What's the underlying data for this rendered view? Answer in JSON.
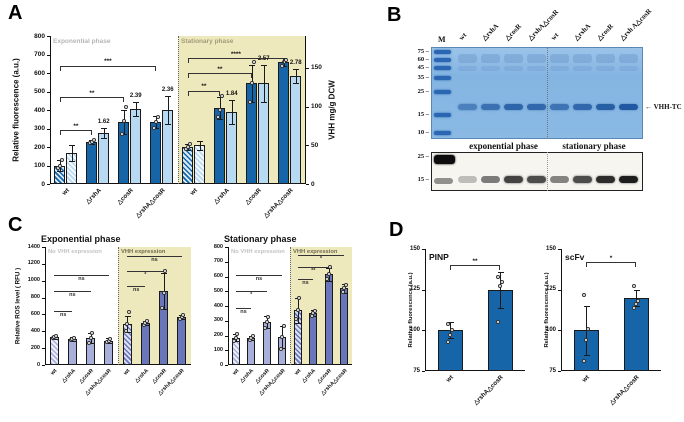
{
  "panels": {
    "A": "A",
    "B": "B",
    "C": "C",
    "D": "D"
  },
  "colors": {
    "dark_blue": "#1565a8",
    "dark_blue_hatch_bg": "#d8e9f6",
    "light_blue": "#b7d9f1",
    "light_blue_hatch_bg": "#f2f8fd",
    "purple_dark": "#6a76ba",
    "purple_dark_hatch_bg": "#dde0f2",
    "purple_light": "#a8afda",
    "purple_light_hatch_bg": "#eef0f9",
    "region_yellow": "#eee9bd",
    "gel_blue": "#8ab9e4",
    "gel_band_blue": "#2b66b2",
    "blot_bg": "#f7f5f0"
  },
  "chart_data": [
    {
      "id": "A",
      "type": "bar",
      "axis_left": {
        "label": "Relative fluorescence (a.u.)",
        "lim": [
          0,
          800
        ],
        "ticks": [
          0,
          100,
          200,
          300,
          400,
          500,
          600,
          700,
          800
        ]
      },
      "axis_right": {
        "label": "VHH mg/g DCW",
        "lim": [
          0,
          150
        ],
        "ticks": [
          0,
          50,
          100,
          150
        ],
        "top_fraction": 0.785
      },
      "categories": [
        "wt",
        "△rshA",
        "△cosR",
        "△rshA△cosR",
        "wt",
        "△rshA",
        "△cosR",
        "△rshA△cosR"
      ],
      "regions": [
        {
          "label": "Exponential phase",
          "from": 0,
          "to": 3,
          "bg": "#ffffff",
          "label_color": "#b5b5b5"
        },
        {
          "label": "Stationary phase",
          "from": 4,
          "to": 7,
          "bg": "#eee9bd",
          "label_color": "#a39b79"
        }
      ],
      "separators": [
        4
      ],
      "series": [
        {
          "name": "Relative fluorescence (a.u.)",
          "axis": "left",
          "styles": [
            "darkblue:hatch",
            "darkblue",
            "darkblue",
            "darkblue",
            "darkblue:hatch",
            "darkblue",
            "darkblue",
            "darkblue"
          ],
          "values": [
            100,
            228,
            335,
            335,
            200,
            410,
            545,
            660
          ],
          "errors": [
            30,
            12,
            65,
            30,
            18,
            60,
            100,
            20
          ],
          "points": [
            [
              85,
              100,
              128
            ],
            [
              222,
              228,
              236
            ],
            [
              270,
              340,
              415
            ],
            [
              305,
              335,
              362
            ],
            [
              190,
              200,
              215
            ],
            [
              360,
              400,
              475
            ],
            [
              445,
              545,
              660
            ],
            [
              640,
              660,
              672
            ]
          ]
        },
        {
          "name": "VHH mg/g DCW",
          "axis": "right",
          "styles": [
            "lightblue:hatch",
            "lightblue",
            "lightblue",
            "lightblue",
            "lightblue:hatch",
            "lightblue",
            "lightblue",
            "lightblue"
          ],
          "values": [
            40,
            66,
            97,
            96,
            50,
            93,
            130,
            140
          ],
          "errors": [
            10,
            6,
            9,
            18,
            6,
            15,
            24,
            9
          ],
          "value_labels": [
            "",
            "1.62",
            "2.39",
            "2.36",
            "",
            "1.84",
            "2.57",
            "2.78"
          ]
        }
      ],
      "brackets": [
        {
          "from": 0,
          "to": 1,
          "label": "**",
          "y": 290
        },
        {
          "from": 0,
          "to": 2,
          "label": "**",
          "y": 470
        },
        {
          "from": 0,
          "to": 3,
          "label": "***",
          "y": 640
        },
        {
          "from": 4,
          "to": 5,
          "label": "**",
          "y": 505
        },
        {
          "from": 4,
          "to": 6,
          "label": "**",
          "y": 600
        },
        {
          "from": 4,
          "to": 7,
          "label": "****",
          "y": 680
        }
      ]
    },
    {
      "id": "C_exponential",
      "type": "bar",
      "title": "Exponential  phase",
      "axis_left": {
        "label": "Relative ROS level ( RFU )",
        "lim": [
          0,
          1400
        ],
        "ticks": [
          0,
          200,
          400,
          600,
          800,
          1000,
          1200,
          1400
        ]
      },
      "categories": [
        "wt",
        "△rshA",
        "△cosR",
        "△rshA△cosR",
        "wt",
        "△rshA",
        "△cosR",
        "△rshA△cosR"
      ],
      "regions": [
        {
          "label": "No VHH expression",
          "from": 0,
          "to": 3,
          "bg": "#ffffff",
          "label_color": "#c2c2c2"
        },
        {
          "label": "VHH expression",
          "from": 4,
          "to": 7,
          "bg": "#eee9bd",
          "label_color": "#6f6b4e"
        }
      ],
      "separators": [
        4
      ],
      "series": [
        {
          "name": "Relative ROS level (RFU)",
          "axis": "left",
          "styles": [
            "purplelight:hatch",
            "purplelight",
            "purplelight",
            "purplelight",
            "purpledark:hatch",
            "purpledark",
            "purpledark",
            "purpledark"
          ],
          "values": [
            330,
            310,
            320,
            290,
            490,
            500,
            880,
            570
          ],
          "errors": [
            20,
            25,
            55,
            25,
            95,
            25,
            215,
            25
          ],
          "points": [
            [
              315,
              330,
              345
            ],
            [
              295,
              310,
              325
            ],
            [
              265,
              320,
              380
            ],
            [
              275,
              290,
              305
            ],
            [
              400,
              490,
              630
            ],
            [
              480,
              500,
              520
            ],
            [
              680,
              850,
              1110
            ],
            [
              545,
              570,
              590
            ]
          ]
        }
      ],
      "brackets": [
        {
          "from": 0,
          "to": 1,
          "label": "ns",
          "y": 640
        },
        {
          "from": 0,
          "to": 2,
          "label": "ns",
          "y": 880
        },
        {
          "from": 0,
          "to": 3,
          "label": "ns",
          "y": 1070
        },
        {
          "from": 4,
          "to": 5,
          "label": "ns",
          "y": 940
        },
        {
          "from": 4,
          "to": 6,
          "label": "*",
          "y": 1120
        },
        {
          "from": 4,
          "to": 7,
          "label": "ns",
          "y": 1290
        }
      ]
    },
    {
      "id": "C_stationary",
      "type": "bar",
      "title": "Stationary  phase",
      "axis_left": {
        "label": "",
        "lim": [
          0,
          800
        ],
        "ticks": [
          0,
          100,
          200,
          300,
          400,
          500,
          600,
          700,
          800
        ]
      },
      "categories": [
        "wt",
        "△rshA",
        "△cosR",
        "△rshA△cosR",
        "wt",
        "△rshA",
        "△cosR",
        "△rshA△cosR"
      ],
      "regions": [
        {
          "label": "No VHH expression",
          "from": 0,
          "to": 3,
          "bg": "#ffffff",
          "label_color": "#c2c2c2"
        },
        {
          "label": "VHH expression",
          "from": 4,
          "to": 7,
          "bg": "#eee9bd",
          "label_color": "#6f6b4e"
        }
      ],
      "separators": [
        4
      ],
      "series": [
        {
          "name": "Relative ROS level (RFU)",
          "axis": "left",
          "styles": [
            "purplelight:hatch",
            "purplelight",
            "purplelight",
            "purplelight",
            "purpledark:hatch",
            "purpledark",
            "purpledark",
            "purpledark"
          ],
          "values": [
            185,
            185,
            290,
            190,
            370,
            350,
            615,
            520
          ],
          "errors": [
            25,
            15,
            40,
            75,
            85,
            20,
            45,
            30
          ],
          "points": [
            [
              165,
              185,
              210
            ],
            [
              172,
              185,
              198
            ],
            [
              252,
              290,
              328
            ],
            [
              110,
              190,
              262
            ],
            [
              312,
              370,
              455
            ],
            [
              332,
              350,
              368
            ],
            [
              580,
              615,
              662
            ],
            [
              492,
              520,
              545
            ]
          ]
        }
      ],
      "brackets": [
        {
          "from": 0,
          "to": 1,
          "label": "ns",
          "y": 385
        },
        {
          "from": 0,
          "to": 2,
          "label": "*",
          "y": 500
        },
        {
          "from": 0,
          "to": 3,
          "label": "ns",
          "y": 610
        },
        {
          "from": 4,
          "to": 5,
          "label": "ns",
          "y": 585
        },
        {
          "from": 4,
          "to": 6,
          "label": "**",
          "y": 665
        },
        {
          "from": 4,
          "to": 7,
          "label": "*",
          "y": 745
        }
      ]
    },
    {
      "id": "D_PINP",
      "type": "bar",
      "title": "PINP",
      "axis_left": {
        "label": "Relative fluorescence (a.u.)",
        "lim": [
          75,
          150
        ],
        "ticks": [
          75,
          100,
          125,
          150
        ]
      },
      "categories": [
        "wt",
        "△rshA△cosR"
      ],
      "series": [
        {
          "name": "Relative fluorescence (a.u.)",
          "axis": "left",
          "styles": [
            "darkblue",
            "darkblue"
          ],
          "values": [
            100,
            125
          ],
          "errors": [
            5,
            11
          ],
          "points": [
            [
              93,
              97,
              100,
              104
            ],
            [
              105,
              127,
              130,
              133
            ]
          ]
        }
      ],
      "brackets": [
        {
          "from": 0,
          "to": 1,
          "label": "**",
          "y": 140
        }
      ]
    },
    {
      "id": "D_scFv",
      "type": "bar",
      "title": "scFv",
      "axis_left": {
        "label": "Relative fluorescence (a.u.)",
        "lim": [
          75,
          150
        ],
        "ticks": [
          75,
          100,
          125,
          150
        ]
      },
      "categories": [
        "wt",
        "△rshA△cosR"
      ],
      "series": [
        {
          "name": "Relative fluorescence (a.u.)",
          "axis": "left",
          "styles": [
            "darkblue",
            "darkblue"
          ],
          "values": [
            100,
            120
          ],
          "errors": [
            15,
            5
          ],
          "points": [
            [
              81,
              94,
              101,
              122
            ],
            [
              114,
              116,
              118,
              127
            ]
          ]
        }
      ],
      "brackets": [
        {
          "from": 0,
          "to": 1,
          "label": "*",
          "y": 142
        }
      ]
    }
  ],
  "panelB": {
    "marker_lane_label": "M",
    "lane_labels": [
      "wt",
      "△rshA",
      "△cosR",
      "△rshA△cosR",
      "wt",
      "△rshA",
      "△cosR",
      "△rsh A△cosR"
    ],
    "gel_marker_kda": [
      75,
      60,
      45,
      35,
      25,
      15,
      10
    ],
    "blot_marker_kda": [
      25,
      15
    ],
    "band_arrow": "←",
    "band_annotation": "VHH-TC",
    "phase_labels": [
      "exponential phase",
      "stationary phase"
    ],
    "gel_band_intensities": [
      0.3,
      0.55,
      0.75,
      0.7,
      0.5,
      0.7,
      0.85,
      0.95
    ],
    "blot_band_intensities": [
      0.15,
      0.5,
      0.8,
      0.75,
      0.45,
      0.75,
      0.92,
      1.0
    ]
  }
}
